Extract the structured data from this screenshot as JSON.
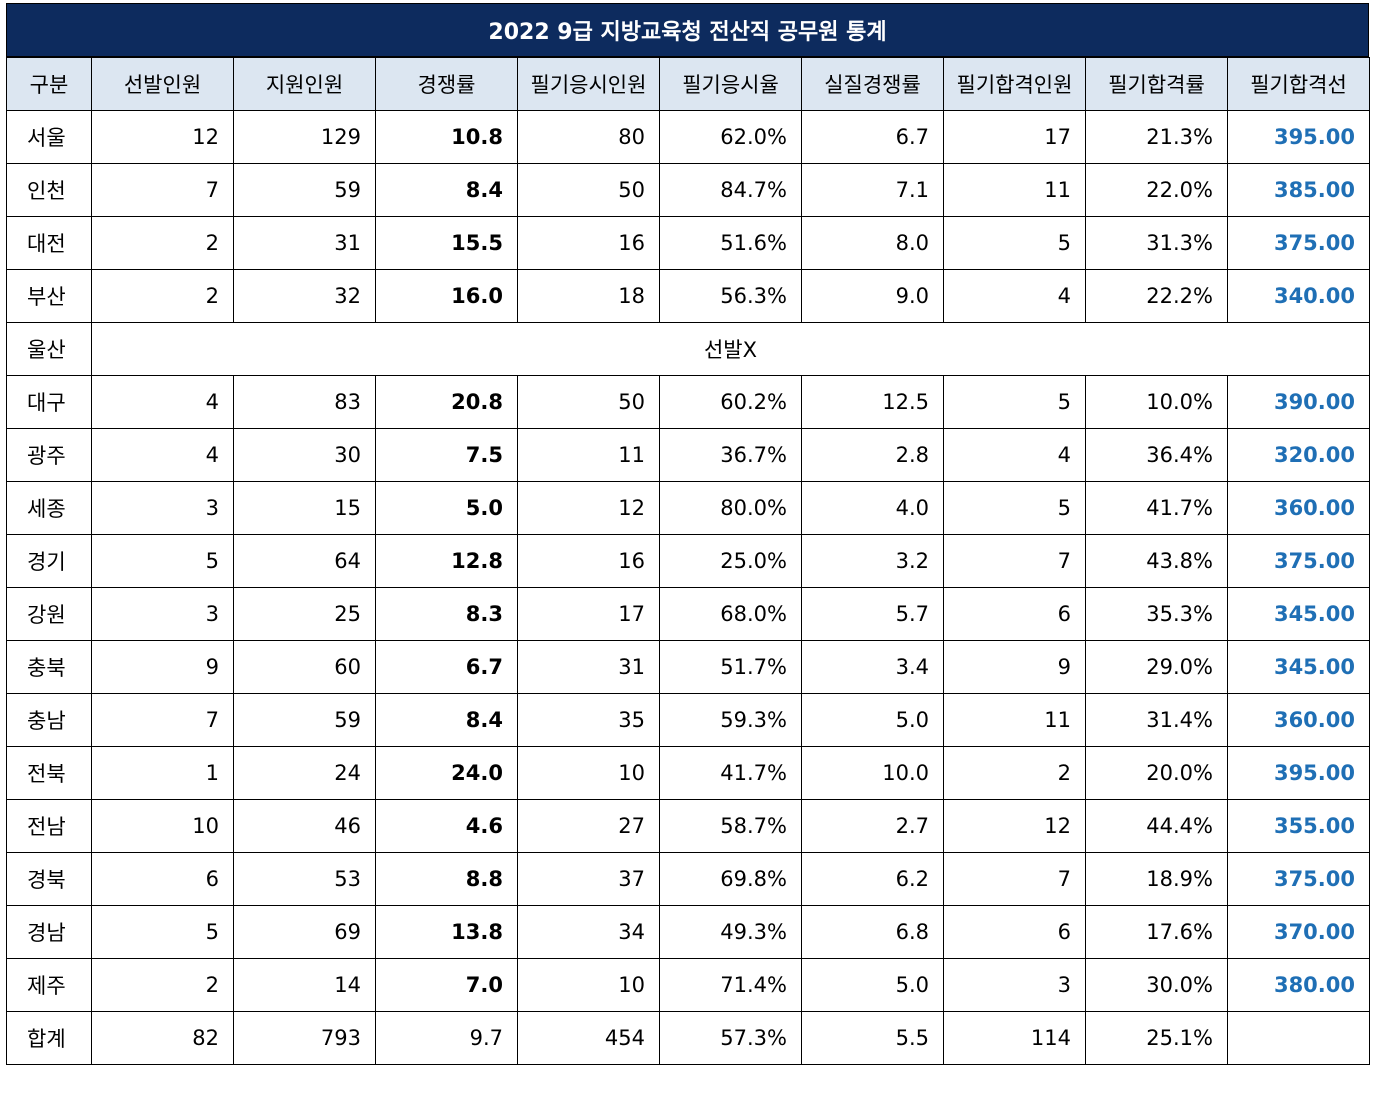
{
  "title": "2022 9급 지방교육청 전산직 공무원 통계",
  "headers": [
    "구분",
    "선발인원",
    "지원인원",
    "경쟁률",
    "필기응시인원",
    "필기응시율",
    "실질경쟁률",
    "필기합격인원",
    "필기합격률",
    "필기합격선"
  ],
  "rows": [
    {
      "region": "서울",
      "cells": [
        "12",
        "129",
        "10.8",
        "80",
        "62.0%",
        "6.7",
        "17",
        "21.3%",
        "395.00"
      ]
    },
    {
      "region": "인천",
      "cells": [
        "7",
        "59",
        "8.4",
        "50",
        "84.7%",
        "7.1",
        "11",
        "22.0%",
        "385.00"
      ]
    },
    {
      "region": "대전",
      "cells": [
        "2",
        "31",
        "15.5",
        "16",
        "51.6%",
        "8.0",
        "5",
        "31.3%",
        "375.00"
      ]
    },
    {
      "region": "부산",
      "cells": [
        "2",
        "32",
        "16.0",
        "18",
        "56.3%",
        "9.0",
        "4",
        "22.2%",
        "340.00"
      ]
    },
    {
      "region": "울산",
      "merged": "선발X"
    },
    {
      "region": "대구",
      "cells": [
        "4",
        "83",
        "20.8",
        "50",
        "60.2%",
        "12.5",
        "5",
        "10.0%",
        "390.00"
      ]
    },
    {
      "region": "광주",
      "cells": [
        "4",
        "30",
        "7.5",
        "11",
        "36.7%",
        "2.8",
        "4",
        "36.4%",
        "320.00"
      ]
    },
    {
      "region": "세종",
      "cells": [
        "3",
        "15",
        "5.0",
        "12",
        "80.0%",
        "4.0",
        "5",
        "41.7%",
        "360.00"
      ]
    },
    {
      "region": "경기",
      "cells": [
        "5",
        "64",
        "12.8",
        "16",
        "25.0%",
        "3.2",
        "7",
        "43.8%",
        "375.00"
      ]
    },
    {
      "region": "강원",
      "cells": [
        "3",
        "25",
        "8.3",
        "17",
        "68.0%",
        "5.7",
        "6",
        "35.3%",
        "345.00"
      ]
    },
    {
      "region": "충북",
      "cells": [
        "9",
        "60",
        "6.7",
        "31",
        "51.7%",
        "3.4",
        "9",
        "29.0%",
        "345.00"
      ]
    },
    {
      "region": "충남",
      "cells": [
        "7",
        "59",
        "8.4",
        "35",
        "59.3%",
        "5.0",
        "11",
        "31.4%",
        "360.00"
      ]
    },
    {
      "region": "전북",
      "cells": [
        "1",
        "24",
        "24.0",
        "10",
        "41.7%",
        "10.0",
        "2",
        "20.0%",
        "395.00"
      ]
    },
    {
      "region": "전남",
      "cells": [
        "10",
        "46",
        "4.6",
        "27",
        "58.7%",
        "2.7",
        "12",
        "44.4%",
        "355.00"
      ]
    },
    {
      "region": "경북",
      "cells": [
        "6",
        "53",
        "8.8",
        "37",
        "69.8%",
        "6.2",
        "7",
        "18.9%",
        "375.00"
      ]
    },
    {
      "region": "경남",
      "cells": [
        "5",
        "69",
        "13.8",
        "34",
        "49.3%",
        "6.8",
        "6",
        "17.6%",
        "370.00"
      ]
    },
    {
      "region": "제주",
      "cells": [
        "2",
        "14",
        "7.0",
        "10",
        "71.4%",
        "5.0",
        "3",
        "30.0%",
        "380.00"
      ]
    }
  ],
  "total": {
    "region": "합계",
    "cells": [
      "82",
      "793",
      "9.7",
      "454",
      "57.3%",
      "5.5",
      "114",
      "25.1%",
      ""
    ]
  },
  "colors": {
    "title_bg": "#0d2b5e",
    "header_bg": "#dce6f1",
    "cutoff_text": "#1f6fb5"
  }
}
